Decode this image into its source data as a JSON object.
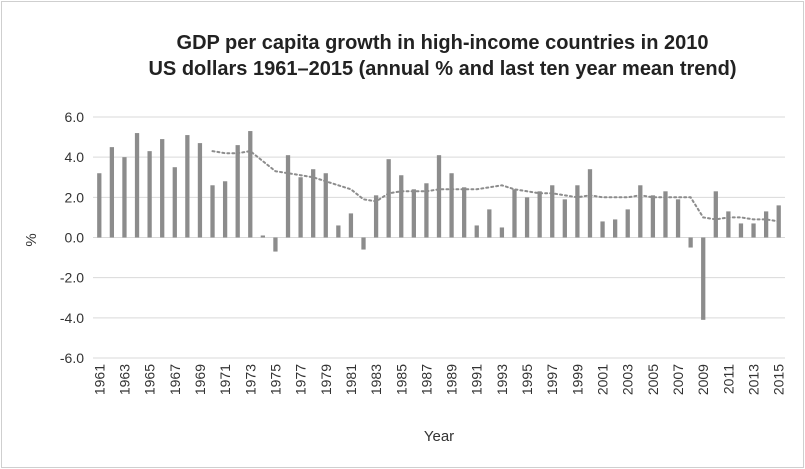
{
  "chart_data": {
    "type": "bar",
    "title": "GDP per capita growth in high-income countries in 2010",
    "subtitle": "US dollars 1961–2015 (annual % and last ten year mean trend)",
    "xlabel": "Year",
    "ylabel": "%",
    "ylim": [
      -6,
      6
    ],
    "yticks": [
      "6.0",
      "4.0",
      "2.0",
      "0.0",
      "-2.0",
      "-4.0",
      "-6.0"
    ],
    "grid": true,
    "categories": [
      "1961",
      "1962",
      "1963",
      "1964",
      "1965",
      "1966",
      "1967",
      "1968",
      "1969",
      "1970",
      "1971",
      "1972",
      "1973",
      "1974",
      "1975",
      "1976",
      "1977",
      "1978",
      "1979",
      "1980",
      "1981",
      "1982",
      "1983",
      "1984",
      "1985",
      "1986",
      "1987",
      "1988",
      "1989",
      "1990",
      "1991",
      "1992",
      "1993",
      "1994",
      "1995",
      "1996",
      "1997",
      "1998",
      "1999",
      "2000",
      "2001",
      "2002",
      "2003",
      "2004",
      "2005",
      "2006",
      "2007",
      "2008",
      "2009",
      "2010",
      "2011",
      "2012",
      "2013",
      "2014",
      "2015"
    ],
    "xtick_labels": [
      "1961",
      "1963",
      "1965",
      "1967",
      "1969",
      "1971",
      "1973",
      "1975",
      "1977",
      "1979",
      "1981",
      "1983",
      "1985",
      "1987",
      "1989",
      "1991",
      "1993",
      "1995",
      "1997",
      "1999",
      "2001",
      "2003",
      "2005",
      "2007",
      "2009",
      "2011",
      "2013",
      "2015"
    ],
    "series": [
      {
        "kind": "bar",
        "color": "#8c8c8c",
        "values": [
          3.2,
          4.5,
          4.0,
          5.2,
          4.3,
          4.9,
          3.5,
          5.1,
          4.7,
          2.6,
          2.8,
          4.6,
          5.3,
          0.1,
          -0.7,
          4.1,
          3.0,
          3.4,
          3.2,
          0.6,
          1.2,
          -0.6,
          2.1,
          3.9,
          3.1,
          2.4,
          2.7,
          4.1,
          3.2,
          2.5,
          0.6,
          1.4,
          0.5,
          2.4,
          2.0,
          2.3,
          2.6,
          1.9,
          2.6,
          3.4,
          0.8,
          0.9,
          1.4,
          2.6,
          2.1,
          2.3,
          1.9,
          -0.5,
          -4.1,
          2.3,
          1.3,
          0.7,
          0.7,
          1.3,
          1.6
        ]
      },
      {
        "kind": "line",
        "style": "dotted",
        "color": "#8c8c8c",
        "values": [
          null,
          null,
          null,
          null,
          null,
          null,
          null,
          null,
          null,
          4.3,
          4.2,
          4.2,
          4.3,
          3.8,
          3.3,
          3.2,
          3.1,
          3.0,
          2.8,
          2.6,
          2.4,
          1.9,
          1.8,
          2.2,
          2.3,
          2.3,
          2.3,
          2.4,
          2.4,
          2.4,
          2.4,
          2.5,
          2.6,
          2.4,
          2.3,
          2.2,
          2.2,
          2.1,
          2.0,
          2.1,
          2.0,
          2.0,
          2.0,
          2.1,
          2.0,
          2.0,
          2.0,
          2.0,
          1.0,
          0.9,
          1.0,
          1.0,
          0.9,
          0.9,
          0.8
        ]
      }
    ]
  }
}
